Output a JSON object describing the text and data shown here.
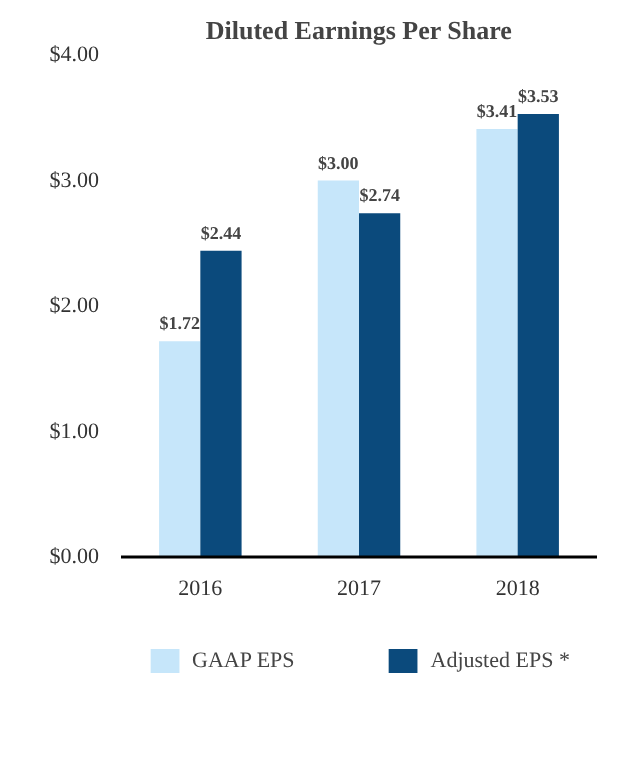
{
  "chart_data": {
    "type": "bar",
    "title": "Diluted Earnings Per Share",
    "categories": [
      "2016",
      "2017",
      "2018"
    ],
    "series": [
      {
        "name": "GAAP EPS",
        "color": "#c6e6fa",
        "values": [
          1.72,
          3.0,
          3.41
        ],
        "value_labels": [
          "$1.72",
          "$3.00",
          "$3.41"
        ]
      },
      {
        "name": "Adjusted EPS *",
        "color": "#0b4a7c",
        "values": [
          2.44,
          2.74,
          3.53
        ],
        "value_labels": [
          "$2.44",
          "$2.74",
          "$3.53"
        ]
      }
    ],
    "ylim": [
      0,
      4
    ],
    "yticks": [
      {
        "value": 0,
        "label": "$0.00"
      },
      {
        "value": 1,
        "label": "$1.00"
      },
      {
        "value": 2,
        "label": "$2.00"
      },
      {
        "value": 3,
        "label": "$3.00"
      },
      {
        "value": 4,
        "label": "$4.00"
      }
    ],
    "grid": false,
    "legend": "bottom"
  }
}
